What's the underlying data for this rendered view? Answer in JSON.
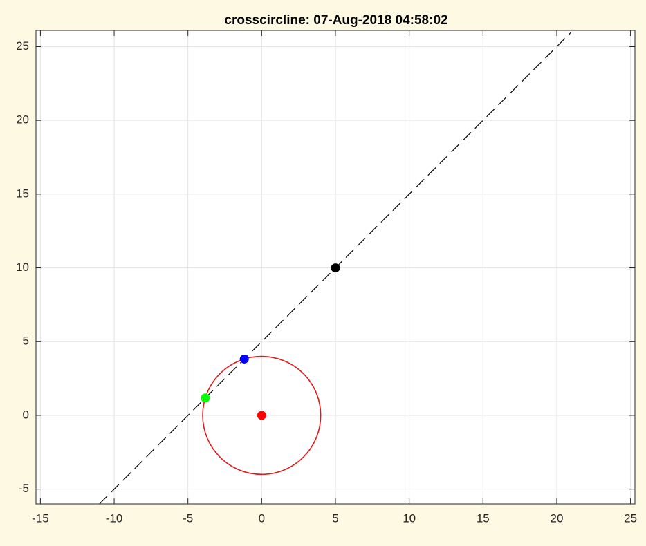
{
  "chart_data": {
    "type": "scatter",
    "title": "crosscircline: 07-Aug-2018 04:58:02",
    "xlim": [
      -15.3,
      25.3
    ],
    "ylim": [
      -6,
      26.1
    ],
    "xticks": [
      -15,
      -10,
      -5,
      0,
      5,
      10,
      15,
      20,
      25
    ],
    "yticks": [
      -5,
      0,
      5,
      10,
      15,
      20,
      25
    ],
    "grid": true,
    "lines": [
      {
        "color": "#000000",
        "dashed": true,
        "x": [
          -11,
          21
        ],
        "y": [
          -6,
          26
        ]
      }
    ],
    "circles": [
      {
        "color": "#e0191b",
        "center": [
          0,
          0
        ],
        "radius": 4
      }
    ],
    "series": [
      {
        "color": "#ff0000",
        "x": [
          0
        ],
        "values": [
          0
        ]
      },
      {
        "color": "#000000",
        "x": [
          5
        ],
        "values": [
          10
        ]
      },
      {
        "color": "#0000ff",
        "x": [
          -1.18
        ],
        "values": [
          3.82
        ]
      },
      {
        "color": "#00ff00",
        "x": [
          -3.82
        ],
        "values": [
          1.18
        ]
      }
    ]
  }
}
